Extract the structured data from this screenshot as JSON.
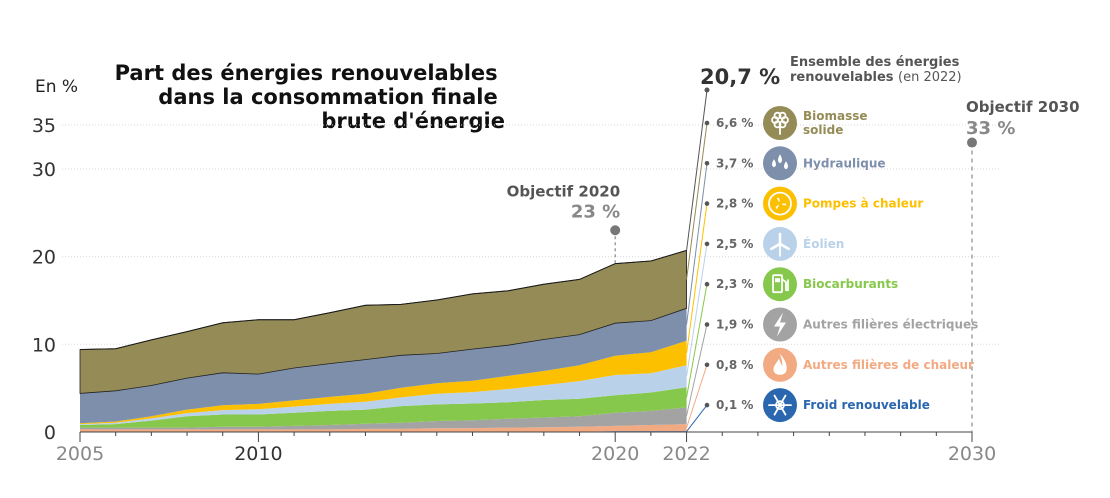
{
  "chart_data": {
    "type": "area",
    "title": [
      "Part des énergies renouvelables",
      "dans la consommation finale",
      "brute d'énergie"
    ],
    "ylabel": "En %",
    "ylim": [
      0,
      35
    ],
    "yticks": [
      0,
      10,
      20,
      30,
      35
    ],
    "xlim": [
      2005,
      2030
    ],
    "xticks": [
      "2005",
      "2010",
      "2020",
      "2022",
      "2030"
    ],
    "x": [
      2005,
      2006,
      2007,
      2008,
      2009,
      2010,
      2011,
      2012,
      2013,
      2014,
      2015,
      2016,
      2017,
      2018,
      2019,
      2020,
      2021,
      2022
    ],
    "series": [
      {
        "name": "Froid renouvelable",
        "pct": "0,1 %",
        "color": "#2b67ae",
        "values": [
          0.0,
          0.0,
          0.0,
          0.0,
          0.0,
          0.0,
          0.0,
          0.0,
          0.0,
          0.0,
          0.05,
          0.05,
          0.05,
          0.05,
          0.05,
          0.1,
          0.1,
          0.1
        ]
      },
      {
        "name": "Autres filières de chaleur",
        "pct": "0,8 %",
        "color": "#f2aa82",
        "values": [
          0.3,
          0.3,
          0.3,
          0.3,
          0.3,
          0.3,
          0.3,
          0.3,
          0.35,
          0.35,
          0.4,
          0.4,
          0.45,
          0.5,
          0.55,
          0.6,
          0.7,
          0.8
        ]
      },
      {
        "name": "Autres filières électriques",
        "pct": "1,9 %",
        "color": "#a3a3a3",
        "values": [
          0.2,
          0.2,
          0.2,
          0.2,
          0.3,
          0.3,
          0.4,
          0.5,
          0.6,
          0.7,
          0.8,
          0.9,
          1.0,
          1.1,
          1.2,
          1.5,
          1.6,
          1.9
        ]
      },
      {
        "name": "Biocarburants",
        "pct": "2,3 %",
        "color": "#86c84b",
        "values": [
          0.3,
          0.4,
          0.8,
          1.3,
          1.4,
          1.4,
          1.5,
          1.6,
          1.6,
          1.9,
          1.9,
          1.9,
          1.9,
          2.0,
          2.0,
          2.0,
          2.1,
          2.3
        ]
      },
      {
        "name": "Éolien",
        "pct": "2,5 %",
        "color": "#b9d2ea",
        "values": [
          0.1,
          0.15,
          0.25,
          0.35,
          0.5,
          0.6,
          0.7,
          0.8,
          0.9,
          1.0,
          1.2,
          1.3,
          1.5,
          1.7,
          2.0,
          2.3,
          2.2,
          2.5
        ]
      },
      {
        "name": "Pompes à chaleur",
        "pct": "2,8 %",
        "color": "#fcc000",
        "values": [
          0.1,
          0.15,
          0.25,
          0.4,
          0.55,
          0.6,
          0.7,
          0.8,
          0.9,
          1.1,
          1.2,
          1.3,
          1.5,
          1.6,
          1.8,
          2.2,
          2.4,
          2.8
        ]
      },
      {
        "name": "Hydraulique",
        "pct": "3,7 %",
        "color": "#7d8fab",
        "values": [
          3.4,
          3.5,
          3.5,
          3.6,
          3.7,
          3.4,
          3.7,
          3.8,
          3.9,
          3.7,
          3.4,
          3.6,
          3.5,
          3.6,
          3.5,
          3.7,
          3.6,
          3.7
        ]
      },
      {
        "name": "Biomasse solide",
        "pct": "6,6 %",
        "color": "#948b57",
        "values": [
          5.0,
          4.8,
          5.2,
          5.3,
          5.7,
          6.2,
          5.5,
          5.8,
          6.2,
          5.8,
          6.1,
          6.3,
          6.2,
          6.3,
          6.3,
          6.8,
          6.8,
          6.6
        ]
      }
    ],
    "objectives": [
      {
        "label": "Objectif 2020",
        "value": "23 %",
        "year": 2020,
        "y": 23
      },
      {
        "label": "Objectif 2030",
        "value": "33 %",
        "year": 2030,
        "y": 33
      }
    ],
    "total": {
      "value": "20,7 %",
      "label_line1": "Ensemble des énergies",
      "label_line2": "renouvelables",
      "year_note": "(en 2022)",
      "y": 20.7
    }
  },
  "icons": {
    "Biomasse solide": "flower-icon",
    "Hydraulique": "water-drops-icon",
    "Pompes à chaleur": "fan-icon",
    "Éolien": "wind-turbine-icon",
    "Biocarburants": "fuel-pump-icon",
    "Autres filières électriques": "lightning-icon",
    "Autres filières de chaleur": "flame-icon",
    "Froid renouvelable": "snowflake-icon"
  }
}
